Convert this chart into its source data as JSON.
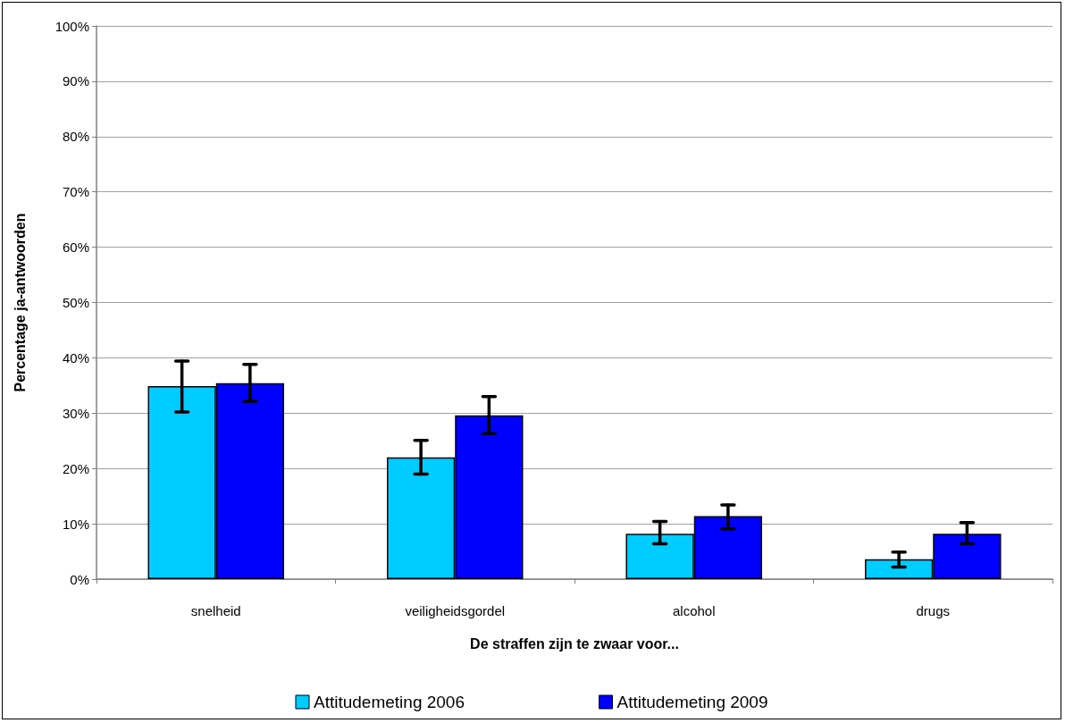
{
  "chart_data": {
    "type": "bar",
    "xlabel": "De straffen zijn te zwaar voor...",
    "ylabel": "Percentage ja-antwoorden",
    "categories": [
      "snelheid",
      "veiligheidsgordel",
      "alcohol",
      "drugs"
    ],
    "series": [
      {
        "name": "Attitudemeting 2006",
        "color": "#00ccff",
        "values": [
          34.9,
          22.0,
          8.2,
          3.6
        ],
        "errors": [
          [
            30.2,
            39.4
          ],
          [
            19.0,
            25.1
          ],
          [
            6.4,
            10.4
          ],
          [
            2.2,
            4.9
          ]
        ]
      },
      {
        "name": "Attitudemeting 2009",
        "color": "#0000ff",
        "values": [
          35.4,
          29.6,
          11.4,
          8.2
        ],
        "errors": [
          [
            32.1,
            38.8
          ],
          [
            26.3,
            33.0
          ],
          [
            9.1,
            13.4
          ],
          [
            6.4,
            10.2
          ]
        ]
      }
    ],
    "ylim": [
      0,
      100
    ],
    "yticks": [
      {
        "value": 0,
        "label": "0%"
      },
      {
        "value": 10,
        "label": "10%"
      },
      {
        "value": 20,
        "label": "20%"
      },
      {
        "value": 30,
        "label": "30%"
      },
      {
        "value": 40,
        "label": "40%"
      },
      {
        "value": 50,
        "label": "50%"
      },
      {
        "value": 60,
        "label": "60%"
      },
      {
        "value": 70,
        "label": "70%"
      },
      {
        "value": 80,
        "label": "80%"
      },
      {
        "value": 90,
        "label": "90%"
      },
      {
        "value": 100,
        "label": "100%"
      }
    ],
    "grid": "y",
    "legend": "bottom"
  }
}
